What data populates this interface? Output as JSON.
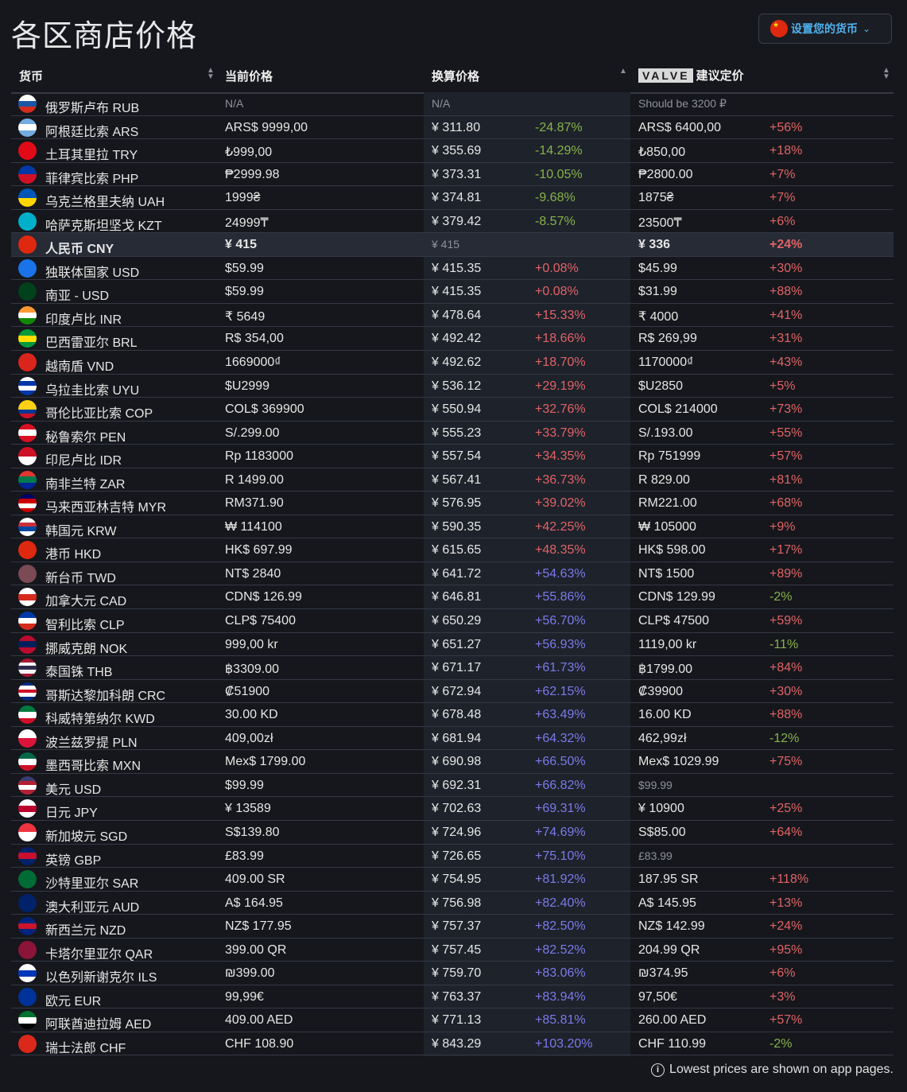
{
  "title": "各区商店价格",
  "currency_button": {
    "label": "设置您的货币",
    "flag": [
      "#de2910"
    ],
    "icon": "chevron-down-icon"
  },
  "columns": {
    "currency": "货币",
    "current": "当前价格",
    "converted": "换算价格",
    "valve_logo": "VALVE",
    "recommended": "建议定价"
  },
  "colors": {
    "negative": "#86b34a",
    "positive": "#e06466",
    "high": "#7b7be8"
  },
  "rows": [
    {
      "name": "俄罗斯卢布 RUB",
      "current": "N/A",
      "converted": "N/A",
      "diff": "",
      "rec": "Should be 3200 ₽",
      "rec_diff": "",
      "muted": true,
      "flag": [
        "#ffffff",
        "#1c57a5",
        "#d52b1e"
      ]
    },
    {
      "name": "阿根廷比索 ARS",
      "current": "ARS$ 9999,00",
      "converted": "¥ 311.80",
      "diff": "-24.87%",
      "rec": "ARS$ 6400,00",
      "rec_diff": "+56%",
      "flag": [
        "#74acdf",
        "#ffffff",
        "#74acdf"
      ]
    },
    {
      "name": "土耳其里拉 TRY",
      "current": "₺999,00",
      "converted": "¥ 355.69",
      "diff": "-14.29%",
      "rec": "₺850,00",
      "rec_diff": "+18%",
      "flag": [
        "#e30a17"
      ]
    },
    {
      "name": "菲律宾比索 PHP",
      "current": "₱2999.98",
      "converted": "¥ 373.31",
      "diff": "-10.05%",
      "rec": "₱2800.00",
      "rec_diff": "+7%",
      "flag": [
        "#0038a8",
        "#ce1126"
      ]
    },
    {
      "name": "乌克兰格里夫纳 UAH",
      "current": "1999₴",
      "converted": "¥ 374.81",
      "diff": "-9.68%",
      "rec": "1875₴",
      "rec_diff": "+7%",
      "flag": [
        "#0057b7",
        "#ffd700"
      ]
    },
    {
      "name": "哈萨克斯坦坚戈 KZT",
      "current": "24999₸",
      "converted": "¥ 379.42",
      "diff": "-8.57%",
      "rec": "23500₸",
      "rec_diff": "+6%",
      "flag": [
        "#00afca"
      ]
    },
    {
      "name": "人民币 CNY",
      "current": "¥ 415",
      "converted": "¥ 415",
      "diff": "",
      "rec": "¥ 336",
      "rec_diff": "+24%",
      "highlight": true,
      "flag": [
        "#de2910"
      ]
    },
    {
      "name": "独联体国家 USD",
      "current": "$59.99",
      "converted": "¥ 415.35",
      "diff": "+0.08%",
      "rec": "$45.99",
      "rec_diff": "+30%",
      "flag": [
        "#1a73e8"
      ]
    },
    {
      "name": "南亚 - USD",
      "current": "$59.99",
      "converted": "¥ 415.35",
      "diff": "+0.08%",
      "rec": "$31.99",
      "rec_diff": "+88%",
      "flag": [
        "#01411c"
      ]
    },
    {
      "name": "印度卢比 INR",
      "current": "₹ 5649",
      "converted": "¥ 478.64",
      "diff": "+15.33%",
      "rec": "₹ 4000",
      "rec_diff": "+41%",
      "flag": [
        "#ff9933",
        "#ffffff",
        "#138808"
      ]
    },
    {
      "name": "巴西雷亚尔 BRL",
      "current": "R$ 354,00",
      "converted": "¥ 492.42",
      "diff": "+18.66%",
      "rec": "R$ 269,99",
      "rec_diff": "+31%",
      "flag": [
        "#009c3b",
        "#ffdf00",
        "#009c3b"
      ]
    },
    {
      "name": "越南盾 VND",
      "current": "1669000₫",
      "converted": "¥ 492.62",
      "diff": "+18.70%",
      "rec": "1170000₫",
      "rec_diff": "+43%",
      "flag": [
        "#da251d"
      ]
    },
    {
      "name": "乌拉圭比索 UYU",
      "current": "$U2999",
      "converted": "¥ 536.12",
      "diff": "+29.19%",
      "rec": "$U2850",
      "rec_diff": "+5%",
      "flag": [
        "#ffffff",
        "#0038a8",
        "#ffffff",
        "#0038a8"
      ]
    },
    {
      "name": "哥伦比亚比索 COP",
      "current": "COL$ 369900",
      "converted": "¥ 550.94",
      "diff": "+32.76%",
      "rec": "COL$ 214000",
      "rec_diff": "+73%",
      "flag": [
        "#fcd116",
        "#fcd116",
        "#003893",
        "#ce1126"
      ]
    },
    {
      "name": "秘鲁索尔 PEN",
      "current": "S/.299.00",
      "converted": "¥ 555.23",
      "diff": "+33.79%",
      "rec": "S/.193.00",
      "rec_diff": "+55%",
      "flag": [
        "#d91023",
        "#ffffff",
        "#d91023"
      ]
    },
    {
      "name": "印尼卢比 IDR",
      "current": "Rp 1183000",
      "converted": "¥ 557.54",
      "diff": "+34.35%",
      "rec": "Rp 751999",
      "rec_diff": "+57%",
      "flag": [
        "#ce1126",
        "#ffffff"
      ]
    },
    {
      "name": "南非兰特 ZAR",
      "current": "R 1499.00",
      "converted": "¥ 567.41",
      "diff": "+36.73%",
      "rec": "R 829.00",
      "rec_diff": "+81%",
      "flag": [
        "#de3831",
        "#007a4d",
        "#002395"
      ]
    },
    {
      "name": "马来西亚林吉特 MYR",
      "current": "RM371.90",
      "converted": "¥ 576.95",
      "diff": "+39.02%",
      "rec": "RM221.00",
      "rec_diff": "+68%",
      "flag": [
        "#010066",
        "#cc0001",
        "#ffffff",
        "#cc0001"
      ]
    },
    {
      "name": "韩国元 KRW",
      "current": "₩ 114100",
      "converted": "¥ 590.35",
      "diff": "+42.25%",
      "rec": "₩ 105000",
      "rec_diff": "+9%",
      "flag": [
        "#ffffff",
        "#cd2e3a",
        "#0047a0",
        "#ffffff"
      ]
    },
    {
      "name": "港币 HKD",
      "current": "HK$ 697.99",
      "converted": "¥ 615.65",
      "diff": "+48.35%",
      "rec": "HK$ 598.00",
      "rec_diff": "+17%",
      "flag": [
        "#de2910"
      ]
    },
    {
      "name": "新台币 TWD",
      "current": "NT$ 2840",
      "converted": "¥ 641.72",
      "diff": "+54.63%",
      "rec": "NT$ 1500",
      "rec_diff": "+89%",
      "flag": [
        "#7a4a55"
      ]
    },
    {
      "name": "加拿大元 CAD",
      "current": "CDN$ 126.99",
      "converted": "¥ 646.81",
      "diff": "+55.86%",
      "rec": "CDN$ 129.99",
      "rec_diff": "-2%",
      "flag": [
        "#ffffff",
        "#d52b1e",
        "#ffffff"
      ]
    },
    {
      "name": "智利比索 CLP",
      "current": "CLP$ 75400",
      "converted": "¥ 650.29",
      "diff": "+56.70%",
      "rec": "CLP$ 47500",
      "rec_diff": "+59%",
      "flag": [
        "#0039a6",
        "#ffffff",
        "#d52b1e"
      ]
    },
    {
      "name": "挪威克朗 NOK",
      "current": "999,00 kr",
      "converted": "¥ 651.27",
      "diff": "+56.93%",
      "rec": "1119,00 kr",
      "rec_diff": "-11%",
      "flag": [
        "#ba0c2f",
        "#00205b",
        "#ba0c2f"
      ]
    },
    {
      "name": "泰国铢 THB",
      "current": "฿3309.00",
      "converted": "¥ 671.17",
      "diff": "+61.73%",
      "rec": "฿1799.00",
      "rec_diff": "+84%",
      "flag": [
        "#a51931",
        "#f4f5f8",
        "#2d2a4a",
        "#f4f5f8",
        "#a51931"
      ]
    },
    {
      "name": "哥斯达黎加科朗 CRC",
      "current": "₡51900",
      "converted": "¥ 672.94",
      "diff": "+62.15%",
      "rec": "₡39900",
      "rec_diff": "+30%",
      "flag": [
        "#002b7f",
        "#ffffff",
        "#ce1126",
        "#ffffff",
        "#002b7f"
      ]
    },
    {
      "name": "科威特第纳尔 KWD",
      "current": "30.00 KD",
      "converted": "¥ 678.48",
      "diff": "+63.49%",
      "rec": "16.00 KD",
      "rec_diff": "+88%",
      "flag": [
        "#007a3d",
        "#ffffff",
        "#ce1126"
      ]
    },
    {
      "name": "波兰兹罗提 PLN",
      "current": "409,00zł",
      "converted": "¥ 681.94",
      "diff": "+64.32%",
      "rec": "462,99zł",
      "rec_diff": "-12%",
      "flag": [
        "#ffffff",
        "#dc143c"
      ]
    },
    {
      "name": "墨西哥比索 MXN",
      "current": "Mex$ 1799.00",
      "converted": "¥ 690.98",
      "diff": "+66.50%",
      "rec": "Mex$ 1029.99",
      "rec_diff": "+75%",
      "flag": [
        "#006847",
        "#ffffff",
        "#ce1126"
      ]
    },
    {
      "name": "美元 USD",
      "current": "$99.99",
      "converted": "¥ 692.31",
      "diff": "+66.82%",
      "rec": "$99.99",
      "rec_diff": "",
      "rec_muted": true,
      "flag": [
        "#3c3b6e",
        "#b22234",
        "#ffffff",
        "#b22234"
      ]
    },
    {
      "name": "日元 JPY",
      "current": "¥ 13589",
      "converted": "¥ 702.63",
      "diff": "+69.31%",
      "rec": "¥ 10900",
      "rec_diff": "+25%",
      "flag": [
        "#ffffff",
        "#bc002d",
        "#ffffff"
      ]
    },
    {
      "name": "新加坡元 SGD",
      "current": "S$139.80",
      "converted": "¥ 724.96",
      "diff": "+74.69%",
      "rec": "S$85.00",
      "rec_diff": "+64%",
      "flag": [
        "#ef3340",
        "#ffffff"
      ]
    },
    {
      "name": "英镑 GBP",
      "current": "£83.99",
      "converted": "¥ 726.65",
      "diff": "+75.10%",
      "rec": "£83.99",
      "rec_diff": "",
      "rec_muted": true,
      "flag": [
        "#012169",
        "#c8102e",
        "#012169"
      ]
    },
    {
      "name": "沙特里亚尔 SAR",
      "current": "409.00 SR",
      "converted": "¥ 754.95",
      "diff": "+81.92%",
      "rec": "187.95 SR",
      "rec_diff": "+118%",
      "flag": [
        "#006c35"
      ]
    },
    {
      "name": "澳大利亚元 AUD",
      "current": "A$ 164.95",
      "converted": "¥ 756.98",
      "diff": "+82.40%",
      "rec": "A$ 145.95",
      "rec_diff": "+13%",
      "flag": [
        "#012169"
      ]
    },
    {
      "name": "新西兰元 NZD",
      "current": "NZ$ 177.95",
      "converted": "¥ 757.37",
      "diff": "+82.50%",
      "rec": "NZ$ 142.99",
      "rec_diff": "+24%",
      "flag": [
        "#00247d",
        "#cc142b",
        "#00247d"
      ]
    },
    {
      "name": "卡塔尔里亚尔 QAR",
      "current": "399.00 QR",
      "converted": "¥ 757.45",
      "diff": "+82.52%",
      "rec": "204.99 QR",
      "rec_diff": "+95%",
      "flag": [
        "#8a1538"
      ]
    },
    {
      "name": "以色列新谢克尔 ILS",
      "current": "₪399.00",
      "converted": "¥ 759.70",
      "diff": "+83.06%",
      "rec": "₪374.95",
      "rec_diff": "+6%",
      "flag": [
        "#ffffff",
        "#0038b8",
        "#ffffff"
      ]
    },
    {
      "name": "欧元 EUR",
      "current": "99,99€",
      "converted": "¥ 763.37",
      "diff": "+83.94%",
      "rec": "97,50€",
      "rec_diff": "+3%",
      "flag": [
        "#003399"
      ]
    },
    {
      "name": "阿联酋迪拉姆 AED",
      "current": "409.00 AED",
      "converted": "¥ 771.13",
      "diff": "+85.81%",
      "rec": "260.00 AED",
      "rec_diff": "+57%",
      "flag": [
        "#00732f",
        "#ffffff",
        "#000000"
      ]
    },
    {
      "name": "瑞士法郎 CHF",
      "current": "CHF 108.90",
      "converted": "¥ 843.29",
      "diff": "+103.20%",
      "rec": "CHF 110.99",
      "rec_diff": "-2%",
      "flag": [
        "#da291c"
      ]
    }
  ],
  "footer": {
    "icon": "info-icon",
    "text": "Lowest prices are shown on app pages."
  }
}
